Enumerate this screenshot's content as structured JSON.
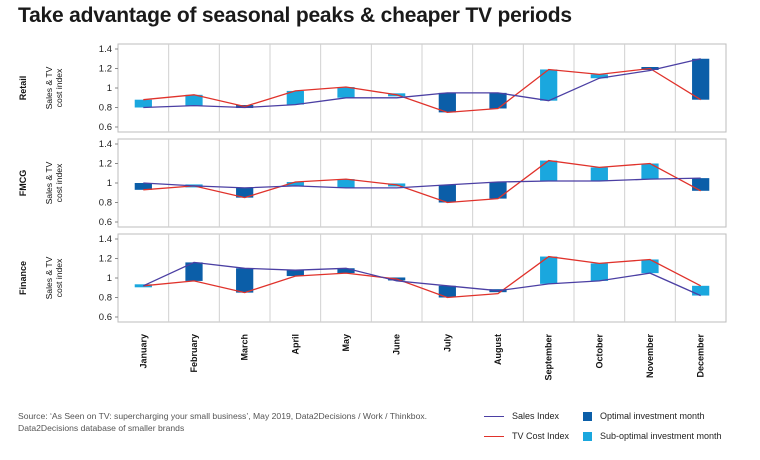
{
  "title": "Take advantage of seasonal peaks & cheaper TV periods",
  "source": "Source: ‘As Seen on TV: supercharging your small business’, May 2019, Data2Decisions / Work / Thinkbox. Data2Decisions database of smaller brands",
  "legend": {
    "sales": "Sales Index",
    "tv": "TV Cost Index",
    "optimal": "Optimal investment month",
    "suboptimal": "Sub-optimal investment month"
  },
  "colors": {
    "sales_line": "#4b3fa3",
    "tv_line": "#e0322b",
    "optimal": "#0b5ea8",
    "suboptimal": "#1aa7de",
    "grid": "#d0d0d0"
  },
  "chart_data": {
    "type": "line",
    "categories": [
      "January",
      "February",
      "March",
      "April",
      "May",
      "June",
      "July",
      "August",
      "September",
      "October",
      "November",
      "December"
    ],
    "ylim": [
      0.6,
      1.4
    ],
    "yticks": [
      0.6,
      0.8,
      1,
      1.2,
      1.4
    ],
    "ytick_labels": [
      "0.6",
      "0.8",
      "1",
      "1.2",
      "1.4"
    ],
    "ylabel": "Sales & TV cost index",
    "panels": [
      {
        "name": "Retail",
        "ylabel": "Sales & TV cost index",
        "series": [
          {
            "name": "Sales Index",
            "values": [
              0.8,
              0.82,
              0.8,
              0.83,
              0.9,
              0.9,
              0.95,
              0.95,
              0.87,
              1.1,
              1.18,
              1.3
            ]
          },
          {
            "name": "TV Cost Index",
            "values": [
              0.88,
              0.93,
              0.81,
              0.97,
              1.01,
              0.93,
              0.75,
              0.79,
              1.19,
              1.14,
              1.2,
              0.88
            ]
          }
        ],
        "investment": [
          "suboptimal",
          "suboptimal",
          "optimal",
          "suboptimal",
          "suboptimal",
          "suboptimal",
          "optimal",
          "optimal",
          "suboptimal",
          "suboptimal",
          "optimal",
          "optimal"
        ]
      },
      {
        "name": "FMCG",
        "ylabel": "Sales & TV cost index",
        "series": [
          {
            "name": "Sales Index",
            "values": [
              1.0,
              0.97,
              0.95,
              0.97,
              0.95,
              0.95,
              0.98,
              1.01,
              1.02,
              1.02,
              1.04,
              1.05
            ]
          },
          {
            "name": "TV Cost Index",
            "values": [
              0.93,
              0.97,
              0.85,
              1.01,
              1.04,
              0.98,
              0.8,
              0.84,
              1.23,
              1.16,
              1.2,
              0.92
            ]
          }
        ],
        "investment": [
          "optimal",
          "suboptimal",
          "optimal",
          "suboptimal",
          "suboptimal",
          "suboptimal",
          "optimal",
          "optimal",
          "suboptimal",
          "suboptimal",
          "suboptimal",
          "optimal"
        ]
      },
      {
        "name": "Finance",
        "ylabel": "Sales & TV cost index",
        "series": [
          {
            "name": "Sales Index",
            "values": [
              0.92,
              1.16,
              1.1,
              1.08,
              1.1,
              0.97,
              0.92,
              0.87,
              0.94,
              0.97,
              1.05,
              0.82
            ]
          },
          {
            "name": "TV Cost Index",
            "values": [
              0.92,
              0.97,
              0.85,
              1.02,
              1.05,
              0.99,
              0.8,
              0.84,
              1.22,
              1.15,
              1.19,
              0.92
            ]
          }
        ],
        "investment": [
          "suboptimal",
          "optimal",
          "optimal",
          "optimal",
          "optimal",
          "optimal",
          "optimal",
          "optimal",
          "suboptimal",
          "suboptimal",
          "suboptimal",
          "suboptimal"
        ]
      }
    ]
  }
}
